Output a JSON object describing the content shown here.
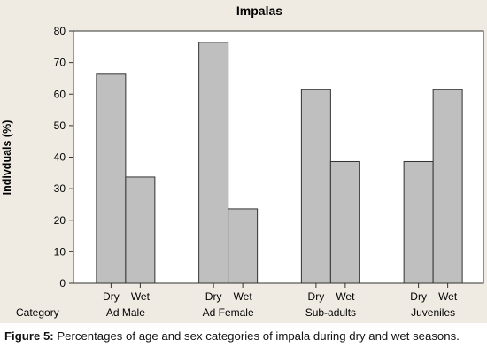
{
  "chart_data": {
    "type": "bar",
    "title": "Impalas",
    "ylabel": "Indivduals (%)",
    "ylim": [
      0,
      80
    ],
    "yticks": [
      0,
      10,
      20,
      30,
      40,
      50,
      60,
      70,
      80
    ],
    "grid": false,
    "x_header": "Category",
    "groups": [
      {
        "name": "Ad Male",
        "bars": [
          {
            "label": "Dry",
            "value": 66.3
          },
          {
            "label": "Wet",
            "value": 33.7
          }
        ]
      },
      {
        "name": "Ad Female",
        "bars": [
          {
            "label": "Dry",
            "value": 76.4
          },
          {
            "label": "Wet",
            "value": 23.6
          }
        ]
      },
      {
        "name": "Sub-adults",
        "bars": [
          {
            "label": "Dry",
            "value": 61.4
          },
          {
            "label": "Wet",
            "value": 38.6
          }
        ]
      },
      {
        "name": "Juveniles",
        "bars": [
          {
            "label": "Dry",
            "value": 38.6
          },
          {
            "label": "Wet",
            "value": 61.4
          }
        ]
      }
    ],
    "colors": {
      "bar": "#bfbfbf",
      "bar_edge": "#333333",
      "background": "#efebe2",
      "plot_bg": "#ffffff"
    }
  },
  "caption": {
    "label": "Figure 5:",
    "text": " Percentages of age and sex categories of impala during dry and wet seasons."
  }
}
